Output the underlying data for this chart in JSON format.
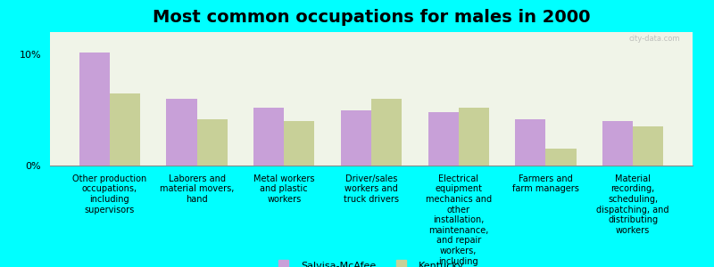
{
  "title": "Most common occupations for males in 2000",
  "background_color": "#00FFFF",
  "plot_background_color": "#F0F4E8",
  "categories": [
    "Other production\noccupations,\nincluding\nsupervisors",
    "Laborers and\nmaterial movers,\nhand",
    "Metal workers\nand plastic\nworkers",
    "Driver/sales\nworkers and\ntruck drivers",
    "Electrical\nequipment\nmechanics and\nother\ninstallation,\nmaintenance,\nand repair\nworkers,\nincluding\nsupervisors",
    "Farmers and\nfarm managers",
    "Material\nrecording,\nscheduling,\ndispatching, and\ndistributing\nworkers"
  ],
  "salvisa_values": [
    10.2,
    6.0,
    5.2,
    5.0,
    4.8,
    4.2,
    4.0
  ],
  "kentucky_values": [
    6.5,
    4.2,
    4.0,
    6.0,
    5.2,
    1.5,
    3.5
  ],
  "salvisa_color": "#C8A0D8",
  "kentucky_color": "#C8D098",
  "bar_width": 0.35,
  "ylim": [
    0,
    12
  ],
  "yticks": [
    0,
    10
  ],
  "ytick_labels": [
    "0%",
    "10%"
  ],
  "legend_salvisa": "Salvisa-McAfee",
  "legend_kentucky": "Kentucky",
  "title_fontsize": 14,
  "label_fontsize": 7,
  "watermark": "city-data.com"
}
